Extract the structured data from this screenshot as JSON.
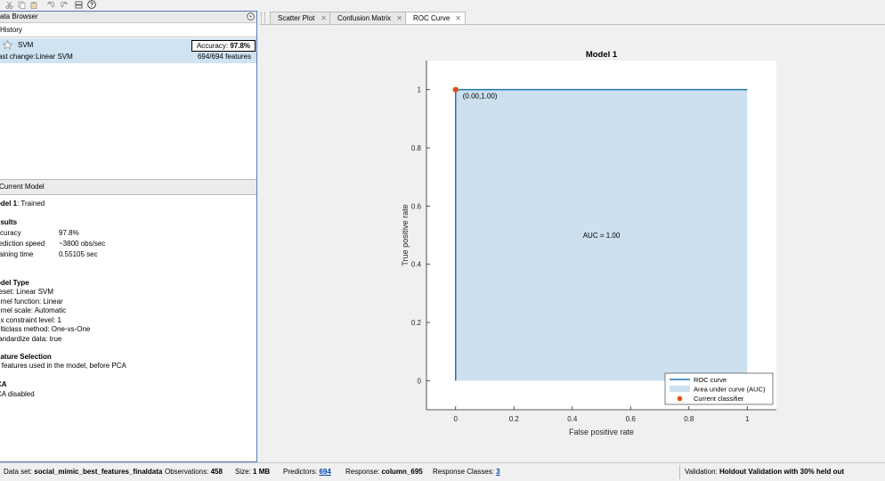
{
  "data_browser": {
    "title": "ata Browser"
  },
  "history": {
    "title": "History",
    "item": {
      "name": "SVM",
      "accuracy_label": "Accuracy:",
      "accuracy_value": "97.8%",
      "last_change_label": "ast change:",
      "last_change_value": "Linear SVM",
      "features": "694/694 features"
    }
  },
  "current_model": {
    "title": "Current Model",
    "model_line_bold": "odel 1",
    "model_line_rest": ": Trained",
    "results_heading": "esults",
    "rows": [
      {
        "label": "ccuracy",
        "value": "97.8%"
      },
      {
        "label": "rediction speed",
        "value": "~3800 obs/sec"
      },
      {
        "label": "raining time",
        "value": "0.55105 sec"
      }
    ],
    "model_type_heading": "odel Type",
    "model_type_lines": [
      "reset: Linear SVM",
      "ernel function: Linear",
      "ernel scale: Automatic",
      "ox constraint level: 1",
      "ulticlass method: One-vs-One",
      "tandardize data: true"
    ],
    "feature_selection_heading": "eature Selection",
    "feature_selection_text": "ll features used in the model, before PCA",
    "pca_heading": "CA",
    "pca_text": "CA disabled"
  },
  "tabs": [
    {
      "label": "Scatter Plot"
    },
    {
      "label": "Confusion Matrix"
    },
    {
      "label": "ROC Curve"
    }
  ],
  "chart_data": {
    "type": "line",
    "title": "Model 1",
    "xlabel": "False positive rate",
    "ylabel": "True positive rate",
    "xlim": [
      -0.1,
      1.1
    ],
    "ylim": [
      -0.1,
      1.1
    ],
    "xticks": [
      "0",
      "0.2",
      "0.4",
      "0.6",
      "0.8",
      "1"
    ],
    "yticks": [
      "0",
      "0.2",
      "0.4",
      "0.6",
      "0.8",
      "1"
    ],
    "series": [
      {
        "name": "ROC curve",
        "x": [
          0,
          0,
          1
        ],
        "y": [
          0,
          1,
          1
        ],
        "color": "#1f77b4"
      },
      {
        "name": "Area under curve (AUC)",
        "x": [
          0,
          0,
          1,
          1
        ],
        "y": [
          0,
          1,
          1,
          0
        ],
        "color": "#cce0ef"
      },
      {
        "name": "Current classifier",
        "x": [
          0.0
        ],
        "y": [
          1.0
        ],
        "color": "#d95319"
      }
    ],
    "annotations": [
      "(0.00,1.00)",
      "AUC = 1.00"
    ],
    "legend_position": "bottom-right",
    "grid": false
  },
  "status": {
    "dataset_label": "Data set:",
    "dataset_value": "social_mimic_best_features_finaldata",
    "obs_label": "Observations:",
    "obs_value": "458",
    "size_label": "Size:",
    "size_value": "1 MB",
    "pred_label": "Predictors:",
    "pred_value": "694",
    "resp_label": "Response:",
    "resp_value": "column_695",
    "classes_label": "Response Classes:",
    "classes_value": "3",
    "validation_label": "Validation:",
    "validation_value": "Holdout Validation with 30% held out"
  }
}
